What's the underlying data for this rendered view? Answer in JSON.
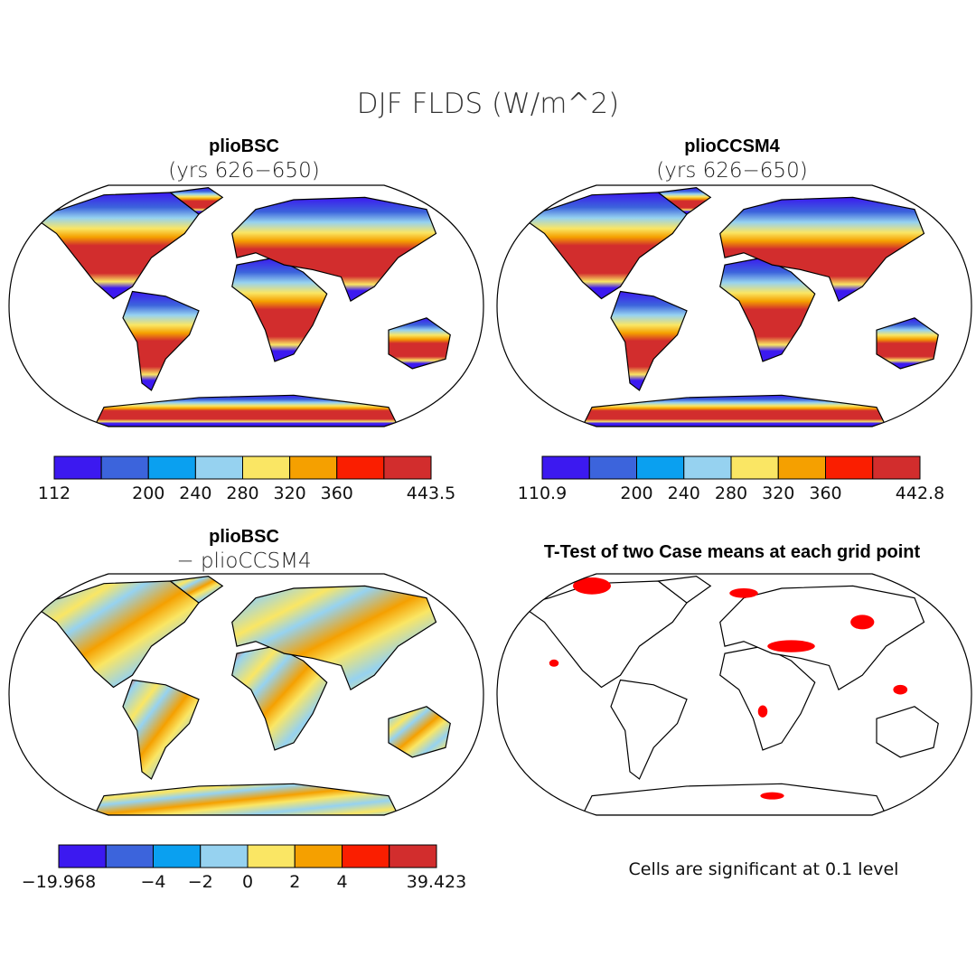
{
  "title": "DJF FLDS (W/m^2)",
  "colorbar_colors": [
    "#3c19f0",
    "#3c64dc",
    "#0aa0f0",
    "#96d2f0",
    "#fae664",
    "#f5a000",
    "#fa1e00",
    "#d22d2d"
  ],
  "panels": [
    {
      "title": "plioBSC",
      "subtitle": "(yrs 626−650)",
      "colorbar": {
        "labels": [
          "112",
          null,
          "200",
          "240",
          "280",
          "320",
          "360",
          null,
          "443.5"
        ]
      }
    },
    {
      "title": "plioCCSM4",
      "subtitle": "(yrs 626−650)",
      "colorbar": {
        "labels": [
          "110.9",
          null,
          "200",
          "240",
          "280",
          "320",
          "360",
          null,
          "442.8"
        ]
      }
    },
    {
      "title": "plioBSC",
      "subtitle": "− plioCCSM4",
      "colorbar": {
        "labels": [
          "−19.968",
          null,
          "−4",
          "−2",
          "0",
          "2",
          "4",
          null,
          "39.423"
        ]
      }
    },
    {
      "title": "T-Test of two Case means at each grid point"
    }
  ],
  "note": "Cells are significant at 0.1 level"
}
